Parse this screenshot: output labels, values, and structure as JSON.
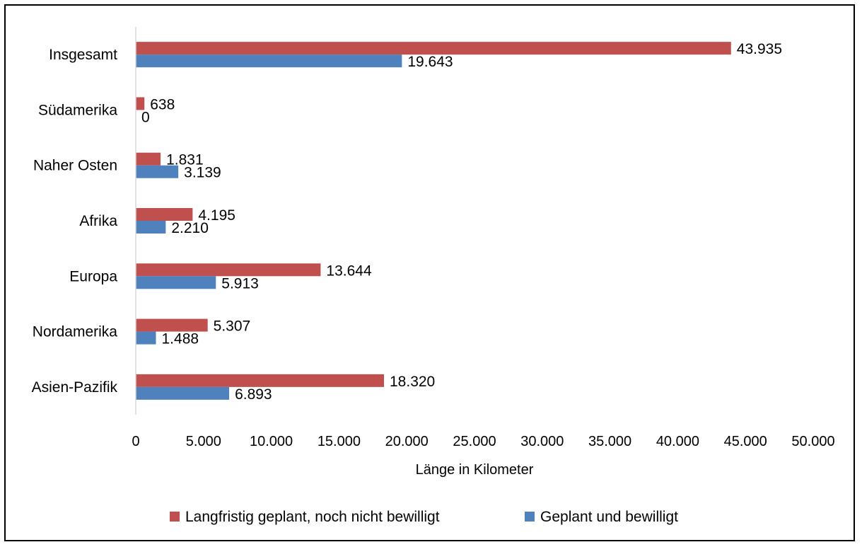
{
  "chart_data": {
    "type": "bar",
    "orientation": "horizontal",
    "categories": [
      "Asien-Pazifik",
      "Nordamerika",
      "Europa",
      "Afrika",
      "Naher Osten",
      "Südamerika",
      "Insgesamt"
    ],
    "series": [
      {
        "name": "Langfristig geplant, noch nicht bewilligt",
        "color": "#c0504d",
        "values": [
          18320,
          5307,
          13644,
          4195,
          1831,
          638,
          43935
        ],
        "labels": [
          "18.320",
          "5.307",
          "13.644",
          "4.195",
          "1.831",
          "638",
          "43.935"
        ]
      },
      {
        "name": "Geplant und bewilligt",
        "color": "#4f81bd",
        "values": [
          6893,
          1488,
          5913,
          2210,
          3139,
          0,
          19643
        ],
        "labels": [
          "6.893",
          "1.488",
          "5.913",
          "2.210",
          "3.139",
          "0",
          "19.643"
        ]
      }
    ],
    "xlim": [
      0,
      50000
    ],
    "xticks": [
      0,
      5000,
      10000,
      15000,
      20000,
      25000,
      30000,
      35000,
      40000,
      45000,
      50000
    ],
    "xtick_labels": [
      "0",
      "5.000",
      "10.000",
      "15.000",
      "20.000",
      "25.000",
      "30.000",
      "35.000",
      "40.000",
      "45.000",
      "50.000"
    ],
    "xlabel": "Länge in Kilometer",
    "ylabel": "",
    "title": "",
    "grid": false,
    "legend_position": "bottom"
  }
}
